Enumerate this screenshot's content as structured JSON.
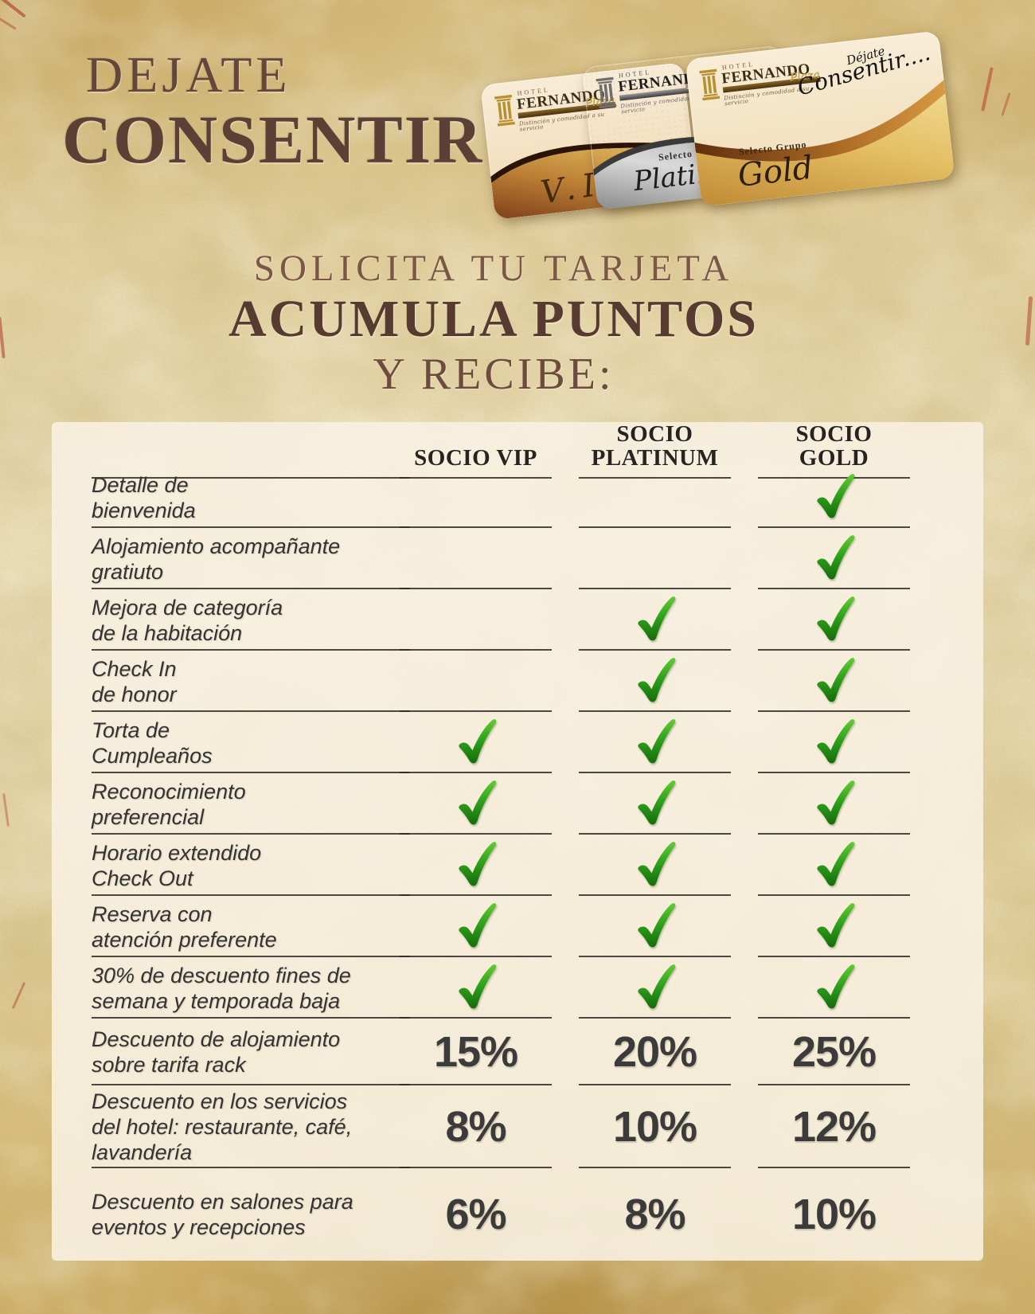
{
  "page": {
    "title_line1": "DEJATE",
    "title_line2": "CONSENTIR",
    "subtitle_line1": "SOLICITA TU TARJETA",
    "subtitle_line2": "ACUMULA PUNTOS",
    "subtitle_line3": "Y RECIBE:"
  },
  "cards": {
    "brand": {
      "hotel": "HOTEL",
      "name": "FERNANDO",
      "suffix": "Plaza",
      "tagline": "Distinción y comodidad a su servicio"
    },
    "vip": {
      "tier_label": "V.I.P"
    },
    "platinum": {
      "group_label": "Selecto Grupo",
      "tier_label": "Platinum"
    },
    "gold": {
      "script_small": "Déjate",
      "script_big": "Consentir....",
      "group_label": "Selecto Grupo",
      "tier_label": "Gold"
    }
  },
  "table": {
    "columns": [
      "SOCIO VIP",
      "SOCIO PLATINUM",
      "SOCIO GOLD"
    ],
    "rows": [
      {
        "label_lines": [
          "Detalle de",
          "bienvenida"
        ],
        "values": [
          "",
          "",
          "check"
        ]
      },
      {
        "label_lines": [
          "Alojamiento acompañante",
          "gratiuto"
        ],
        "values": [
          "",
          "",
          "check"
        ]
      },
      {
        "label_lines": [
          "Mejora de categoría",
          "de la habitación"
        ],
        "values": [
          "",
          "check",
          "check"
        ]
      },
      {
        "label_lines": [
          "Check In",
          "de honor"
        ],
        "values": [
          "",
          "check",
          "check"
        ]
      },
      {
        "label_lines": [
          "Torta de",
          "Cumpleaños"
        ],
        "values": [
          "check",
          "check",
          "check"
        ]
      },
      {
        "label_lines": [
          "Reconocimiento",
          "preferencial"
        ],
        "values": [
          "check",
          "check",
          "check"
        ]
      },
      {
        "label_lines": [
          "Horario extendido",
          "Check Out"
        ],
        "values": [
          "check",
          "check",
          "check"
        ]
      },
      {
        "label_lines": [
          "Reserva con",
          "atención preferente"
        ],
        "values": [
          "check",
          "check",
          "check"
        ]
      },
      {
        "label_lines": [
          "30% de descuento fines de",
          "semana y temporada baja"
        ],
        "values": [
          "check",
          "check",
          "check"
        ]
      },
      {
        "label_lines": [
          "Descuento de alojamiento",
          "sobre tarifa rack"
        ],
        "values": [
          "15%",
          "20%",
          "25%"
        ]
      },
      {
        "label_lines": [
          "Descuento en los servicios",
          "del hotel: restaurante, café,",
          "lavandería"
        ],
        "values": [
          "8%",
          "10%",
          "12%"
        ]
      },
      {
        "label_lines": [
          "Descuento en salones para",
          "eventos y recepciones"
        ],
        "values": [
          "6%",
          "8%",
          "10%"
        ]
      }
    ]
  },
  "colors": {
    "title_brown": "#5c4036",
    "subtitle_brown": "#7b5846",
    "check_green": "#2fa31c",
    "gold_accent": "#c9a23a",
    "parchment": "#ddc48c"
  }
}
